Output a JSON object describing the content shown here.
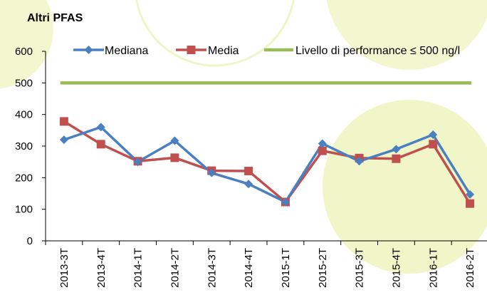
{
  "chart_data": {
    "type": "line",
    "title": "Altri PFAS",
    "categories": [
      "2013-3T",
      "2013-4T",
      "2014-1T",
      "2014-2T",
      "2014-3T",
      "2014-4T",
      "2015-1T",
      "2015-2T",
      "2015-3T",
      "2015-4T",
      "2016-1T",
      "2016-2T"
    ],
    "ylim": [
      0,
      600
    ],
    "yticks": [
      0,
      100,
      200,
      300,
      400,
      500,
      600
    ],
    "series": [
      {
        "name": "Mediana",
        "color": "#4a7fc1",
        "marker": "diamond",
        "values": [
          320,
          360,
          250,
          317,
          215,
          180,
          123,
          308,
          252,
          290,
          336,
          147
        ]
      },
      {
        "name": "Media",
        "color": "#c0504d",
        "marker": "square",
        "values": [
          378,
          306,
          252,
          263,
          222,
          221,
          123,
          285,
          262,
          260,
          306,
          118
        ]
      },
      {
        "name": "Livello di performance ≤ 500 ng/l",
        "color": "#9bbb59",
        "marker": "none",
        "values": [
          500,
          500,
          500,
          500,
          500,
          500,
          500,
          500,
          500,
          500,
          500,
          500
        ]
      }
    ],
    "legend_position": "top",
    "grid": false
  }
}
